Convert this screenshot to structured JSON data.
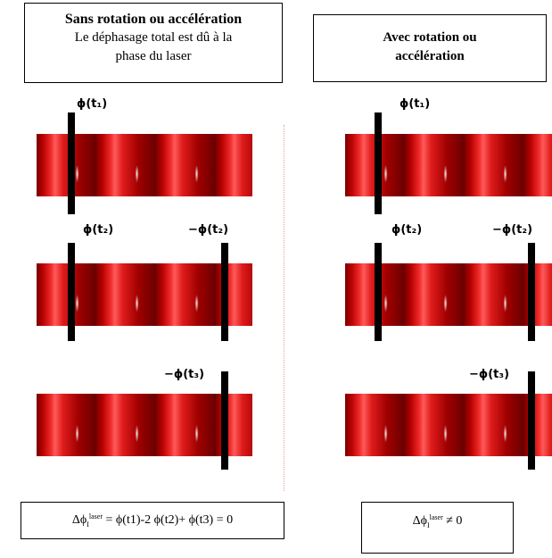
{
  "left_title": {
    "line1": "Sans rotation ou accélération",
    "line2": "Le déphasage total est dû à la",
    "line3": "phase du laser"
  },
  "right_title": {
    "line1": "Avec rotation ou",
    "line2": "accélération"
  },
  "labels": {
    "phi_t1": "ϕ(t₁)",
    "phi_t2": "ϕ(t₂)",
    "minus_phi_t2": "−ϕ(t₂)",
    "minus_phi_t3": "−ϕ(t₃)"
  },
  "formula_left": {
    "prefix": "Δϕ",
    "sub": "I",
    "sup": "laser",
    "rest": " = ϕ(t1)-2 ϕ(t2)+ ϕ(t3) = 0"
  },
  "formula_right": {
    "prefix": "Δϕ",
    "sub": "I",
    "sup": "laser",
    "rest": " ≠ 0"
  }
}
